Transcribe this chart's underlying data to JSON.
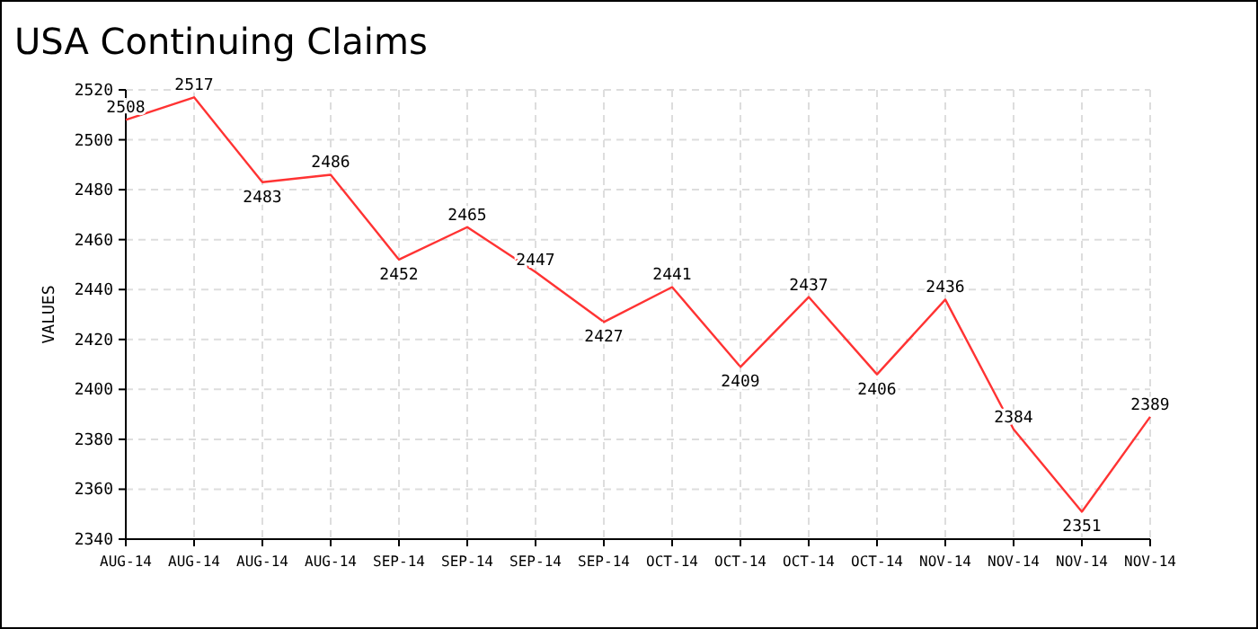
{
  "chart_data": {
    "type": "line",
    "title": "USA Continuing Claims",
    "ylabel": "VALUES",
    "categories": [
      "AUG-14",
      "AUG-14",
      "AUG-14",
      "AUG-14",
      "SEP-14",
      "SEP-14",
      "SEP-14",
      "SEP-14",
      "OCT-14",
      "OCT-14",
      "OCT-14",
      "OCT-14",
      "NOV-14",
      "NOV-14",
      "NOV-14",
      "NOV-14"
    ],
    "series": [
      {
        "color": "#ff3333",
        "values": [
          2508,
          2517,
          2483,
          2486,
          2452,
          2465,
          2447,
          2427,
          2441,
          2409,
          2437,
          2406,
          2436,
          2384,
          2351,
          2389
        ]
      }
    ],
    "ylim": [
      2340,
      2520
    ],
    "yticks": [
      2340,
      2360,
      2380,
      2400,
      2420,
      2440,
      2460,
      2480,
      2500,
      2520
    ],
    "grid": true,
    "data_labels": true,
    "marker": "none",
    "line_style": "solid"
  }
}
